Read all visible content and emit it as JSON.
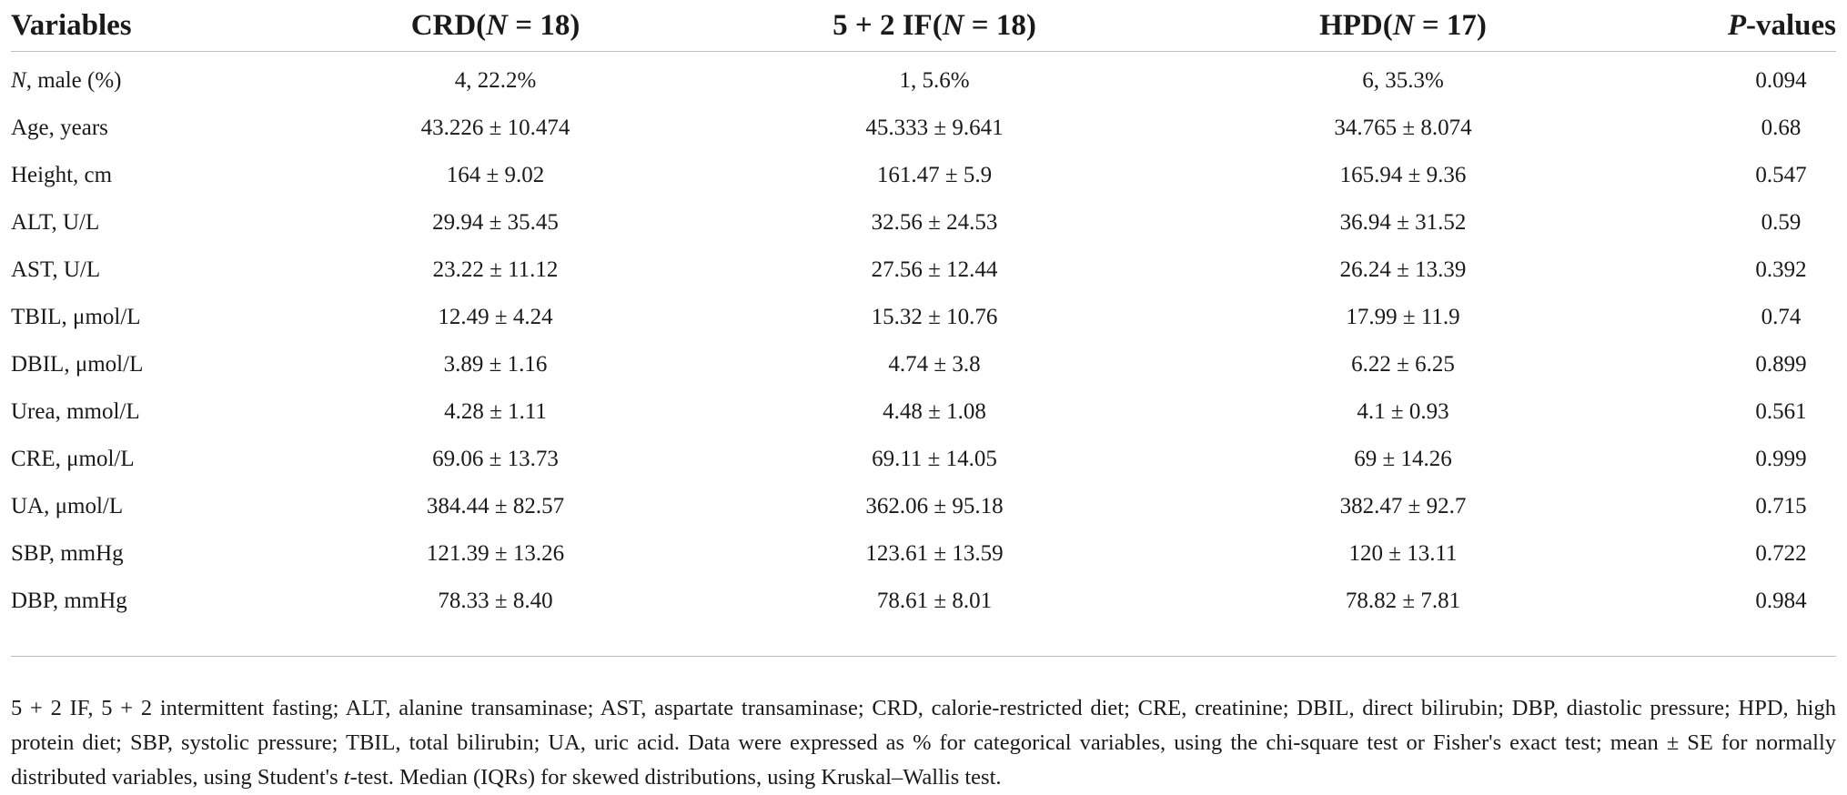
{
  "table": {
    "headers": {
      "variables": "Variables",
      "crd": "CRD(N = 18)",
      "if52": "5 + 2 IF(N = 18)",
      "hpd": "HPD(N = 17)",
      "p_values": "P-values"
    },
    "rows": [
      {
        "variable": "N, male (%)",
        "crd": "4, 22.2%",
        "if52": "1, 5.6%",
        "hpd": "6, 35.3%",
        "p": "0.094"
      },
      {
        "variable": "Age, years",
        "crd": "43.226 ± 10.474",
        "if52": "45.333 ± 9.641",
        "hpd": "34.765 ± 8.074",
        "p": "0.68"
      },
      {
        "variable": "Height, cm",
        "crd": "164 ± 9.02",
        "if52": "161.47 ± 5.9",
        "hpd": "165.94 ± 9.36",
        "p": "0.547"
      },
      {
        "variable": "ALT, U/L",
        "crd": "29.94 ± 35.45",
        "if52": "32.56 ± 24.53",
        "hpd": "36.94 ± 31.52",
        "p": "0.59"
      },
      {
        "variable": "AST, U/L",
        "crd": "23.22 ± 11.12",
        "if52": "27.56 ± 12.44",
        "hpd": "26.24 ± 13.39",
        "p": "0.392"
      },
      {
        "variable": "TBIL, μmol/L",
        "crd": "12.49 ± 4.24",
        "if52": "15.32 ± 10.76",
        "hpd": "17.99 ± 11.9",
        "p": "0.74"
      },
      {
        "variable": "DBIL, μmol/L",
        "crd": "3.89 ± 1.16",
        "if52": "4.74 ± 3.8",
        "hpd": "6.22 ± 6.25",
        "p": "0.899"
      },
      {
        "variable": "Urea, mmol/L",
        "crd": "4.28 ± 1.11",
        "if52": "4.48 ± 1.08",
        "hpd": "4.1 ± 0.93",
        "p": "0.561"
      },
      {
        "variable": "CRE, μmol/L",
        "crd": "69.06 ± 13.73",
        "if52": "69.11 ± 14.05",
        "hpd": "69 ± 14.26",
        "p": "0.999"
      },
      {
        "variable": "UA, μmol/L",
        "crd": "384.44 ± 82.57",
        "if52": "362.06 ± 95.18",
        "hpd": "382.47 ± 92.7",
        "p": "0.715"
      },
      {
        "variable": "SBP, mmHg",
        "crd": "121.39 ± 13.26",
        "if52": "123.61 ± 13.59",
        "hpd": "120 ± 13.11",
        "p": "0.722"
      },
      {
        "variable": "DBP, mmHg",
        "crd": "78.33 ± 8.40",
        "if52": "78.61 ± 8.01",
        "hpd": "78.82 ± 7.81",
        "p": "0.984"
      }
    ]
  },
  "footnote": "5 + 2 IF, 5 + 2 intermittent fasting; ALT, alanine transaminase; AST, aspartate transaminase; CRD, calorie-restricted diet; CRE, creatinine; DBIL, direct bilirubin; DBP, diastolic pressure; HPD, high protein diet; SBP, systolic pressure; TBIL, total bilirubin; UA, uric acid. Data were expressed as % for categorical variables, using the chi-square test or Fisher's exact test; mean ± SE for normally distributed variables, using Student's t-test. Median (IQRs) for skewed distributions, using Kruskal–Wallis test."
}
